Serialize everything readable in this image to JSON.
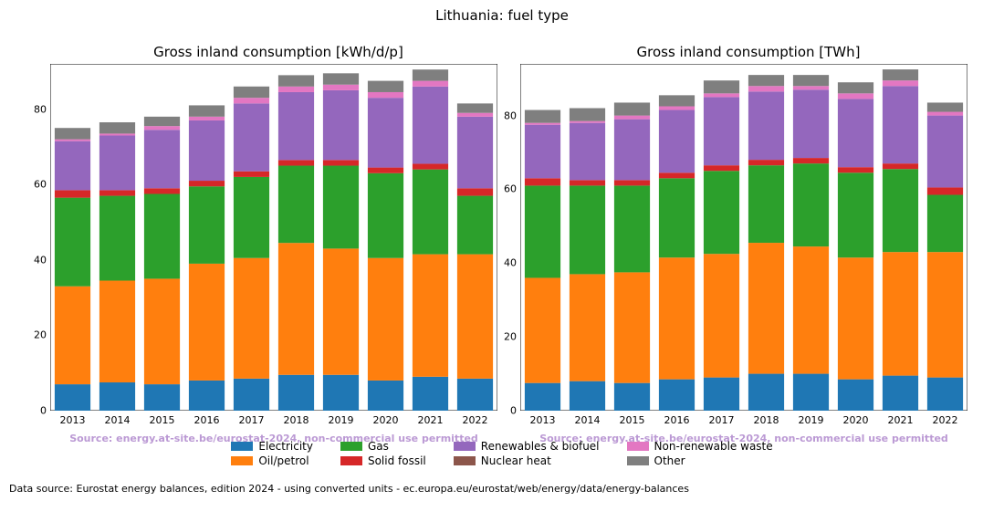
{
  "suptitle": "Lithuania: fuel type",
  "datasource": "Data source: Eurostat energy balances, edition 2024 - using converted units - ec.europa.eu/eurostat/web/energy/data/energy-balances",
  "source_note": "Source: energy.at-site.be/eurostat-2024, non-commercial use permitted",
  "source_note_color": "#bb99d4",
  "background_color": "#ffffff",
  "axis_color": "#000000",
  "categories": [
    "2013",
    "2014",
    "2015",
    "2016",
    "2017",
    "2018",
    "2019",
    "2020",
    "2021",
    "2022"
  ],
  "series_order": [
    "electricity",
    "oil",
    "gas",
    "solid",
    "renew",
    "nuclear",
    "waste",
    "other"
  ],
  "series_meta": {
    "electricity": {
      "label": "Electricity",
      "color": "#1f77b4"
    },
    "oil": {
      "label": "Oil/petrol",
      "color": "#ff7f0e"
    },
    "gas": {
      "label": "Gas",
      "color": "#2ca02c"
    },
    "solid": {
      "label": "Solid fossil",
      "color": "#d62728"
    },
    "renew": {
      "label": "Renewables & biofuel",
      "color": "#9467bd"
    },
    "nuclear": {
      "label": "Nuclear heat",
      "color": "#8c564b"
    },
    "waste": {
      "label": "Non-renewable waste",
      "color": "#e377c2"
    },
    "other": {
      "label": "Other",
      "color": "#7f7f7f"
    }
  },
  "legend_layout": [
    [
      "electricity",
      "oil"
    ],
    [
      "gas",
      "solid"
    ],
    [
      "renew",
      "nuclear"
    ],
    [
      "waste",
      "other"
    ]
  ],
  "panels": [
    {
      "title": "Gross inland consumption [kWh/d/p]",
      "ylim": [
        0,
        92
      ],
      "ytick_step": 20,
      "bar_width": 0.8,
      "data": {
        "electricity": [
          7.0,
          7.5,
          7.0,
          8.0,
          8.5,
          9.5,
          9.5,
          8.0,
          9.0,
          8.5
        ],
        "oil": [
          26.0,
          27.0,
          28.0,
          31.0,
          32.0,
          35.0,
          33.5,
          32.5,
          32.5,
          33.0
        ],
        "gas": [
          23.5,
          22.5,
          22.5,
          20.5,
          21.5,
          20.5,
          22.0,
          22.5,
          22.5,
          15.5
        ],
        "solid": [
          2.0,
          1.5,
          1.5,
          1.5,
          1.5,
          1.5,
          1.5,
          1.5,
          1.5,
          2.0
        ],
        "renew": [
          13.0,
          14.5,
          15.5,
          16.0,
          18.0,
          18.0,
          18.5,
          18.5,
          20.5,
          19.0
        ],
        "nuclear": [
          0.0,
          0.0,
          0.0,
          0.0,
          0.0,
          0.0,
          0.0,
          0.0,
          0.0,
          0.0
        ],
        "waste": [
          0.5,
          0.5,
          1.0,
          1.0,
          1.5,
          1.5,
          1.5,
          1.5,
          1.5,
          1.0
        ],
        "other": [
          3.0,
          3.0,
          2.5,
          3.0,
          3.0,
          3.0,
          3.0,
          3.0,
          3.0,
          2.5
        ]
      }
    },
    {
      "title": "Gross inland consumption [TWh]",
      "ylim": [
        0,
        94
      ],
      "ytick_step": 20,
      "bar_width": 0.8,
      "data": {
        "electricity": [
          7.5,
          8.0,
          7.5,
          8.5,
          9.0,
          10.0,
          10.0,
          8.5,
          9.5,
          9.0
        ],
        "oil": [
          28.5,
          29.0,
          30.0,
          33.0,
          33.5,
          35.5,
          34.5,
          33.0,
          33.5,
          34.0
        ],
        "gas": [
          25.0,
          24.0,
          23.5,
          21.5,
          22.5,
          21.0,
          22.5,
          23.0,
          22.5,
          15.5
        ],
        "solid": [
          2.0,
          1.5,
          1.5,
          1.5,
          1.5,
          1.5,
          1.5,
          1.5,
          1.5,
          2.0
        ],
        "renew": [
          14.5,
          15.5,
          16.5,
          17.0,
          18.5,
          18.5,
          18.5,
          18.5,
          21.0,
          19.5
        ],
        "nuclear": [
          0.0,
          0.0,
          0.0,
          0.0,
          0.0,
          0.0,
          0.0,
          0.0,
          0.0,
          0.0
        ],
        "waste": [
          0.5,
          0.5,
          1.0,
          1.0,
          1.0,
          1.5,
          1.0,
          1.5,
          1.5,
          1.0
        ],
        "other": [
          3.5,
          3.5,
          3.5,
          3.0,
          3.5,
          3.0,
          3.0,
          3.0,
          3.0,
          2.5
        ]
      }
    }
  ],
  "title_fontsize": 15,
  "suptitle_fontsize": 15,
  "tick_fontsize": 11,
  "legend_fontsize": 12,
  "datasource_fontsize": 11
}
